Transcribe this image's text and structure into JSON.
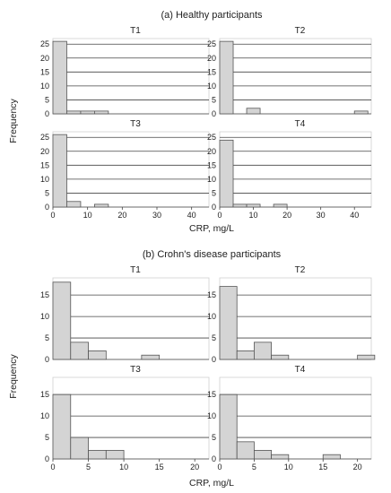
{
  "figure": {
    "section_a_title": "(a) Healthy participants",
    "section_b_title": "(b) Crohn's disease participants",
    "ylabel": "Frequency",
    "xlabel": "CRP, mg/L"
  },
  "chart_data": [
    {
      "type": "bar",
      "title": "T1",
      "group": "a",
      "xlim": [
        0,
        45
      ],
      "ylim": [
        0,
        27
      ],
      "yticks": [
        0,
        5,
        10,
        15,
        20,
        25
      ],
      "xticks": [],
      "bin_width": 4,
      "bins": [
        {
          "x0": 0,
          "x1": 4,
          "value": 26
        },
        {
          "x0": 4,
          "x1": 8,
          "value": 1
        },
        {
          "x0": 8,
          "x1": 12,
          "value": 1
        },
        {
          "x0": 12,
          "x1": 16,
          "value": 1
        }
      ]
    },
    {
      "type": "bar",
      "title": "T2",
      "group": "a",
      "xlim": [
        0,
        45
      ],
      "ylim": [
        0,
        27
      ],
      "yticks": [
        0,
        5,
        10,
        15,
        20,
        25
      ],
      "xticks": [],
      "bin_width": 4,
      "bins": [
        {
          "x0": 0,
          "x1": 4,
          "value": 26
        },
        {
          "x0": 8,
          "x1": 12,
          "value": 2
        },
        {
          "x0": 40,
          "x1": 44,
          "value": 1
        }
      ]
    },
    {
      "type": "bar",
      "title": "T3",
      "group": "a",
      "xlim": [
        0,
        45
      ],
      "ylim": [
        0,
        27
      ],
      "yticks": [
        0,
        5,
        10,
        15,
        20,
        25
      ],
      "xticks": [
        0,
        10,
        20,
        30,
        40
      ],
      "bin_width": 4,
      "bins": [
        {
          "x0": 0,
          "x1": 4,
          "value": 26
        },
        {
          "x0": 4,
          "x1": 8,
          "value": 2
        },
        {
          "x0": 12,
          "x1": 16,
          "value": 1
        }
      ]
    },
    {
      "type": "bar",
      "title": "T4",
      "group": "a",
      "xlim": [
        0,
        45
      ],
      "ylim": [
        0,
        27
      ],
      "yticks": [
        0,
        5,
        10,
        15,
        20,
        25
      ],
      "xticks": [
        0,
        10,
        20,
        30,
        40
      ],
      "bin_width": 4,
      "bins": [
        {
          "x0": 0,
          "x1": 4,
          "value": 24
        },
        {
          "x0": 4,
          "x1": 8,
          "value": 1
        },
        {
          "x0": 8,
          "x1": 12,
          "value": 1
        },
        {
          "x0": 16,
          "x1": 20,
          "value": 1
        }
      ]
    },
    {
      "type": "bar",
      "title": "T1",
      "group": "b",
      "xlim": [
        0,
        22
      ],
      "ylim": [
        0,
        19
      ],
      "yticks": [
        0,
        5,
        10,
        15
      ],
      "xticks": [],
      "bin_width": 2.5,
      "bins": [
        {
          "x0": 0,
          "x1": 2.5,
          "value": 18
        },
        {
          "x0": 2.5,
          "x1": 5,
          "value": 4
        },
        {
          "x0": 5,
          "x1": 7.5,
          "value": 2
        },
        {
          "x0": 12.5,
          "x1": 15,
          "value": 1
        }
      ]
    },
    {
      "type": "bar",
      "title": "T2",
      "group": "b",
      "xlim": [
        0,
        22
      ],
      "ylim": [
        0,
        19
      ],
      "yticks": [
        0,
        5,
        10,
        15
      ],
      "xticks": [],
      "bin_width": 2.5,
      "bins": [
        {
          "x0": 0,
          "x1": 2.5,
          "value": 17
        },
        {
          "x0": 2.5,
          "x1": 5,
          "value": 2
        },
        {
          "x0": 5,
          "x1": 7.5,
          "value": 4
        },
        {
          "x0": 7.5,
          "x1": 10,
          "value": 1
        },
        {
          "x0": 20,
          "x1": 22.5,
          "value": 1
        }
      ]
    },
    {
      "type": "bar",
      "title": "T3",
      "group": "b",
      "xlim": [
        0,
        22
      ],
      "ylim": [
        0,
        19
      ],
      "yticks": [
        0,
        5,
        10,
        15
      ],
      "xticks": [
        0,
        5,
        10,
        15,
        20
      ],
      "bin_width": 2.5,
      "bins": [
        {
          "x0": 0,
          "x1": 2.5,
          "value": 15
        },
        {
          "x0": 2.5,
          "x1": 5,
          "value": 5
        },
        {
          "x0": 5,
          "x1": 7.5,
          "value": 2
        },
        {
          "x0": 7.5,
          "x1": 10,
          "value": 2
        }
      ]
    },
    {
      "type": "bar",
      "title": "T4",
      "group": "b",
      "xlim": [
        0,
        22
      ],
      "ylim": [
        0,
        19
      ],
      "yticks": [
        0,
        5,
        10,
        15
      ],
      "xticks": [
        0,
        5,
        10,
        15,
        20
      ],
      "bin_width": 2.5,
      "bins": [
        {
          "x0": 0,
          "x1": 2.5,
          "value": 15
        },
        {
          "x0": 2.5,
          "x1": 5,
          "value": 4
        },
        {
          "x0": 5,
          "x1": 7.5,
          "value": 2
        },
        {
          "x0": 7.5,
          "x1": 10,
          "value": 1
        },
        {
          "x0": 15,
          "x1": 17.5,
          "value": 1
        }
      ]
    }
  ],
  "colors": {
    "bar_fill": "#d4d4d4",
    "bar_stroke": "#555555",
    "grid": "#444444",
    "frame": "#cfcfcf",
    "text": "#222222"
  }
}
